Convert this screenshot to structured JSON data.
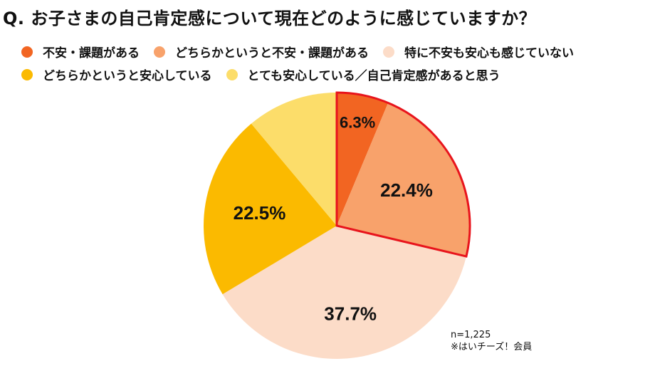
{
  "title": "Q. お子さまの自己肯定感について現在どのように感じていますか？",
  "legend": [
    {
      "label": "不安・課題がある",
      "color": "#F26522"
    },
    {
      "label": "どちらかというと不安・課題がある",
      "color": "#F8A26B"
    },
    {
      "label": "特に不安も安心も感じていない",
      "color": "#FCDCC8"
    },
    {
      "label": "どちらかというと安心している",
      "color": "#FBBA00"
    },
    {
      "label": "とても安心している／自己肯定感があると思う",
      "color": "#FCDD6A"
    }
  ],
  "notes": {
    "sample": "n=1,225",
    "source": "※はいチーズ！会員"
  },
  "highlight_color": "#E8141C",
  "chart_data": {
    "type": "pie",
    "title": "Q. お子さまの自己肯定感について現在どのように感じていますか？",
    "categories": [
      "不安・課題がある",
      "どちらかというと不安・課題がある",
      "特に不安も安心も感じていない",
      "どちらかというと安心している",
      "とても安心している／自己肯定感があると思う"
    ],
    "values": [
      6.3,
      22.4,
      37.7,
      22.5,
      11.1
    ],
    "data_labels": [
      "6.3%",
      "22.4%",
      "37.7%",
      "22.5%",
      ""
    ],
    "colors": [
      "#F26522",
      "#F8A26B",
      "#FCDCC8",
      "#FBBA00",
      "#FCDD6A"
    ],
    "highlighted": [
      0,
      1
    ],
    "start": "12 o'clock",
    "direction": "clockwise",
    "legend_position": "top"
  }
}
